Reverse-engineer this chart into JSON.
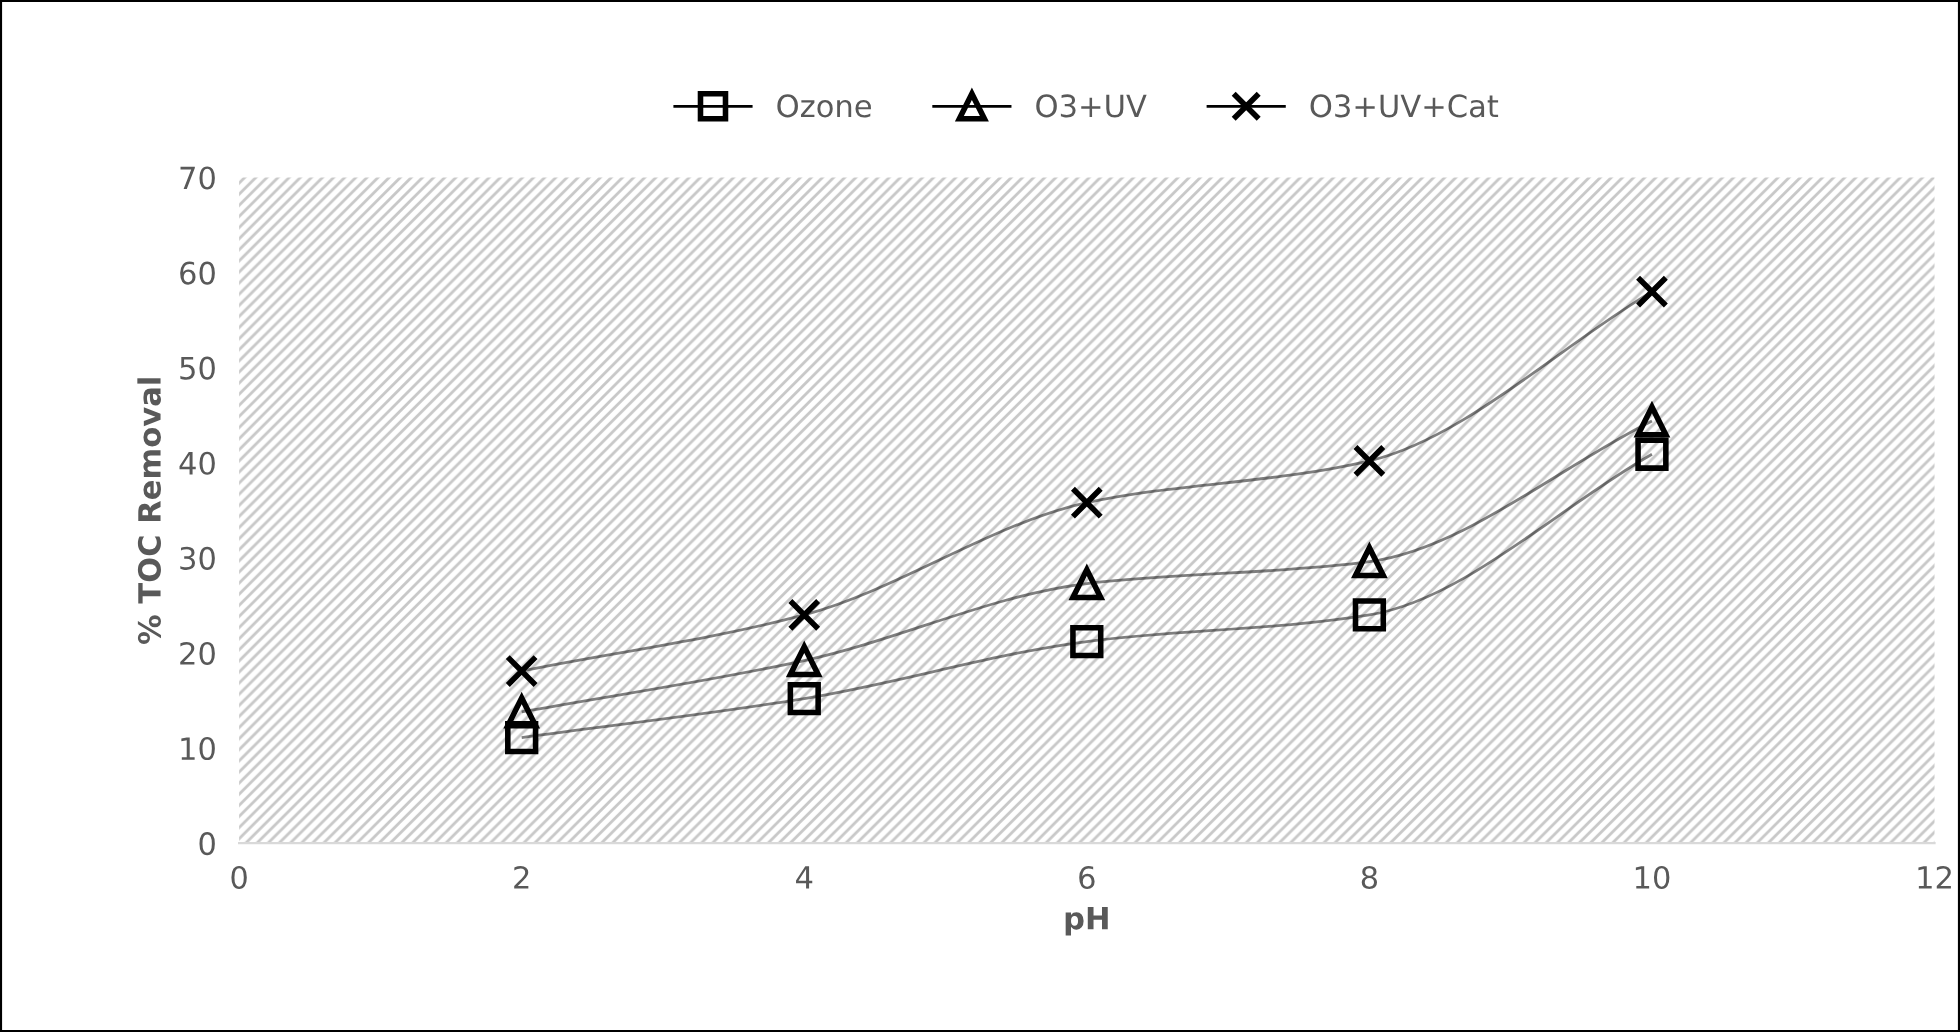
{
  "chart_data": {
    "type": "line",
    "xlabel": "pH",
    "ylabel": "% TOC Removal",
    "x": [
      2,
      4,
      6,
      8,
      10
    ],
    "series": [
      {
        "name": "Ozone",
        "color": "#000000",
        "marker": "square",
        "values": [
          11.1,
          15.2,
          21.2,
          24,
          40.9
        ]
      },
      {
        "name": "O3+UV",
        "color": "#000000",
        "marker": "triangle",
        "values": [
          13.8,
          19.2,
          27.3,
          29.6,
          44.4
        ]
      },
      {
        "name": "O3+UV+Cat",
        "color": "#000000",
        "marker": "cross",
        "values": [
          18.1,
          24,
          35.8,
          40.2,
          58
        ]
      }
    ],
    "xlim": [
      0,
      12
    ],
    "xticks": [
      0,
      2,
      4,
      6,
      8,
      10,
      12
    ],
    "ylim": [
      0,
      70
    ],
    "yticks": [
      0,
      10,
      20,
      30,
      40,
      50,
      60,
      70
    ],
    "grid": false,
    "legend": "top",
    "line_style": "solid"
  }
}
